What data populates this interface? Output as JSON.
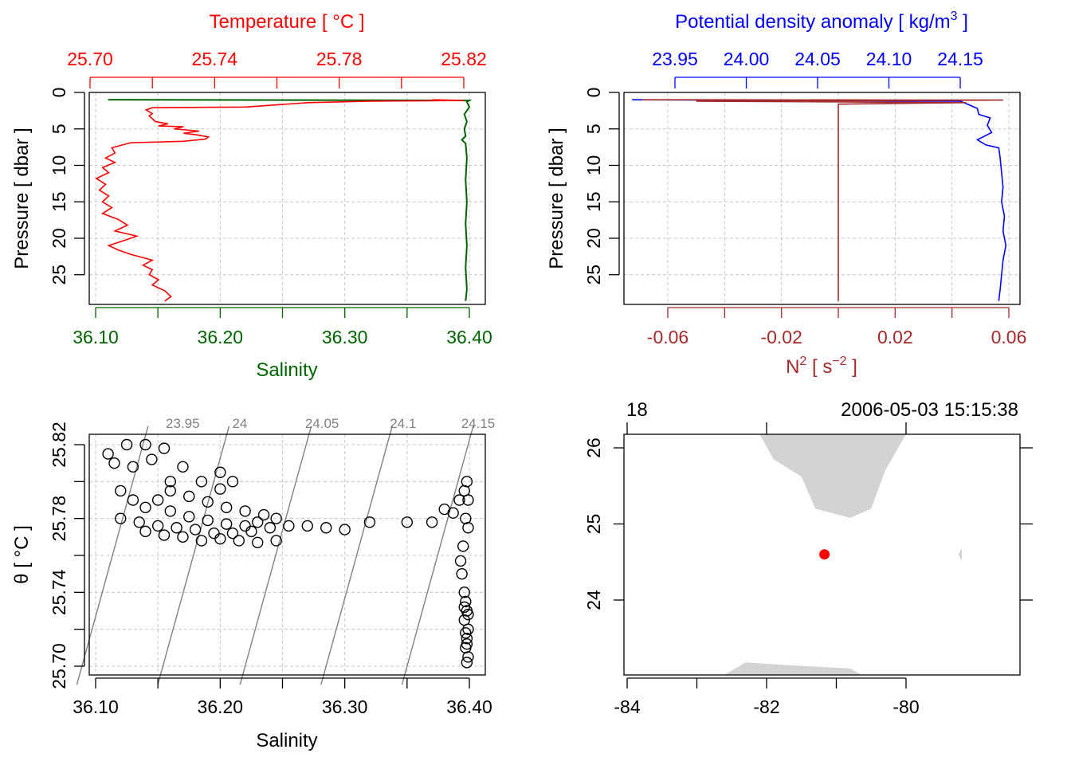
{
  "colors": {
    "temperature": "#ff0000",
    "salinity": "#006400",
    "density": "#0000ff",
    "n2": "#a52a2a",
    "grid": "#c8c8c8",
    "isopycnal": "#808080",
    "land": "#d3d3d3",
    "station": "#ff0000"
  },
  "chart_data": [
    {
      "type": "line",
      "panel": "temperature-salinity-profile",
      "title": "",
      "top_axis": {
        "label": "Temperature [ °C ]",
        "ticks": [
          "25.70",
          "25.74",
          "25.78",
          "25.82"
        ],
        "range": [
          25.7,
          25.82
        ]
      },
      "bottom_axis": {
        "label": "Salinity",
        "ticks": [
          "36.10",
          "36.20",
          "36.30",
          "36.40"
        ],
        "range": [
          36.1,
          36.4
        ]
      },
      "left_axis": {
        "label": "Pressure [ dbar ]",
        "ticks": [
          "0",
          "5",
          "10",
          "15",
          "20",
          "25"
        ],
        "range": [
          0,
          29
        ],
        "reversed": true
      },
      "grid": true,
      "series": [
        {
          "name": "Temperature",
          "color": "#ff0000",
          "points": [
            [
              25.81,
              1.0
            ],
            [
              25.82,
              1.1
            ],
            [
              25.79,
              1.2
            ],
            [
              25.77,
              1.4
            ],
            [
              25.76,
              1.7
            ],
            [
              25.75,
              2.0
            ],
            [
              25.72,
              2.1
            ],
            [
              25.718,
              2.4
            ],
            [
              25.72,
              2.9
            ],
            [
              25.719,
              3.2
            ],
            [
              25.721,
              4.0
            ],
            [
              25.725,
              4.3
            ],
            [
              25.722,
              4.6
            ],
            [
              25.73,
              4.7
            ],
            [
              25.727,
              5.0
            ],
            [
              25.735,
              5.3
            ],
            [
              25.73,
              5.6
            ],
            [
              25.734,
              5.8
            ],
            [
              25.738,
              6.1
            ],
            [
              25.737,
              6.4
            ],
            [
              25.73,
              6.7
            ],
            [
              25.713,
              6.9
            ],
            [
              25.707,
              7.6
            ],
            [
              25.708,
              8.3
            ],
            [
              25.705,
              9.0
            ],
            [
              25.708,
              9.6
            ],
            [
              25.704,
              10.3
            ],
            [
              25.706,
              11.0
            ],
            [
              25.702,
              11.8
            ],
            [
              25.705,
              12.6
            ],
            [
              25.703,
              13.4
            ],
            [
              25.706,
              14.2
            ],
            [
              25.704,
              15.0
            ],
            [
              25.707,
              15.8
            ],
            [
              25.704,
              16.6
            ],
            [
              25.709,
              17.4
            ],
            [
              25.712,
              18.2
            ],
            [
              25.708,
              19.0
            ],
            [
              25.715,
              19.7
            ],
            [
              25.711,
              20.3
            ],
            [
              25.706,
              21.0
            ],
            [
              25.709,
              21.6
            ],
            [
              25.713,
              22.2
            ],
            [
              25.72,
              23.0
            ],
            [
              25.717,
              23.7
            ],
            [
              25.72,
              24.3
            ],
            [
              25.719,
              25.0
            ],
            [
              25.722,
              25.7
            ],
            [
              25.72,
              26.4
            ],
            [
              25.724,
              27.2
            ],
            [
              25.726,
              28.0
            ],
            [
              25.724,
              28.6
            ]
          ]
        },
        {
          "name": "Salinity",
          "color": "#006400",
          "points": [
            [
              36.11,
              1.0
            ],
            [
              36.4,
              1.1
            ],
            [
              36.398,
              1.3
            ],
            [
              36.4,
              2.0
            ],
            [
              36.396,
              3.0
            ],
            [
              36.398,
              4.0
            ],
            [
              36.396,
              5.0
            ],
            [
              36.397,
              6.0
            ],
            [
              36.394,
              6.5
            ],
            [
              36.397,
              7.0
            ],
            [
              36.398,
              9.0
            ],
            [
              36.397,
              12.0
            ],
            [
              36.398,
              15.0
            ],
            [
              36.397,
              18.0
            ],
            [
              36.398,
              21.0
            ],
            [
              36.397,
              24.0
            ],
            [
              36.398,
              27.0
            ],
            [
              36.397,
              28.6
            ]
          ]
        }
      ]
    },
    {
      "type": "line",
      "panel": "density-n2-profile",
      "title": "",
      "top_axis": {
        "label_base": "Potential density anomaly [ kg/m",
        "label_sup": "3",
        "label_end": " ]",
        "ticks": [
          "23.95",
          "24.00",
          "24.05",
          "24.10",
          "24.15"
        ],
        "range": [
          23.95,
          24.15
        ]
      },
      "bottom_axis": {
        "label_base": "N",
        "label_sup": "2",
        "label_mid": " [ s",
        "label_sup2": "−2",
        "label_end": " ]",
        "ticks": [
          "-0.06",
          "-0.02",
          "0.02",
          "0.06"
        ],
        "range": [
          -0.06,
          0.06
        ]
      },
      "left_axis": {
        "label": "Pressure [ dbar ]",
        "ticks": [
          "0",
          "5",
          "10",
          "15",
          "20",
          "25"
        ],
        "range": [
          0,
          29
        ],
        "reversed": true
      },
      "grid": true,
      "series": [
        {
          "name": "Potential density anomaly",
          "color": "#0000ff",
          "points": [
            [
              23.92,
              1.0
            ],
            [
              24.15,
              1.2
            ],
            [
              24.155,
              1.6
            ],
            [
              24.162,
              2.2
            ],
            [
              24.163,
              3.0
            ],
            [
              24.171,
              3.5
            ],
            [
              24.169,
              4.5
            ],
            [
              24.172,
              5.5
            ],
            [
              24.162,
              6.5
            ],
            [
              24.168,
              7.2
            ],
            [
              24.177,
              7.6
            ],
            [
              24.178,
              9.0
            ],
            [
              24.179,
              11.0
            ],
            [
              24.18,
              13.0
            ],
            [
              24.179,
              15.0
            ],
            [
              24.181,
              17.0
            ],
            [
              24.18,
              19.0
            ],
            [
              24.182,
              21.0
            ],
            [
              24.18,
              23.0
            ],
            [
              24.179,
              25.0
            ],
            [
              24.178,
              27.0
            ],
            [
              24.177,
              28.6
            ]
          ]
        },
        {
          "name": "N2",
          "color": "#a52a2a",
          "points": [
            [
              -0.069,
              1.0
            ],
            [
              0.058,
              1.05
            ],
            [
              -0.05,
              1.2
            ],
            [
              0.045,
              1.4
            ],
            [
              0.0,
              1.6
            ],
            [
              0.0,
              2.0
            ],
            [
              0.0,
              28.6
            ]
          ]
        }
      ]
    },
    {
      "type": "scatter",
      "panel": "ts-diagram",
      "title": "",
      "bottom_axis": {
        "label": "Salinity",
        "ticks": [
          "36.10",
          "36.20",
          "36.30",
          "36.40"
        ],
        "range": [
          36.1,
          36.4
        ]
      },
      "left_axis": {
        "label": "θ [ °C ]",
        "ticks": [
          "25.70",
          "25.74",
          "25.78",
          "25.82"
        ],
        "range": [
          25.7,
          25.82
        ]
      },
      "grid": true,
      "isopycnal_labels": [
        "23.95",
        "24",
        "24.05",
        "24.1",
        "24.15"
      ],
      "isopycnals_salinity_at_theta_25_70": [
        36.089,
        36.154,
        36.22,
        36.285,
        36.35
      ],
      "points": [
        [
          36.11,
          25.815
        ],
        [
          36.125,
          25.82
        ],
        [
          36.14,
          25.82
        ],
        [
          36.155,
          25.818
        ],
        [
          36.115,
          25.81
        ],
        [
          36.13,
          25.808
        ],
        [
          36.145,
          25.812
        ],
        [
          36.17,
          25.808
        ],
        [
          36.185,
          25.8
        ],
        [
          36.2,
          25.796
        ],
        [
          36.12,
          25.795
        ],
        [
          36.13,
          25.79
        ],
        [
          36.14,
          25.786
        ],
        [
          36.15,
          25.79
        ],
        [
          36.16,
          25.795
        ],
        [
          36.175,
          25.792
        ],
        [
          36.19,
          25.789
        ],
        [
          36.205,
          25.786
        ],
        [
          36.22,
          25.784
        ],
        [
          36.235,
          25.782
        ],
        [
          36.245,
          25.78
        ],
        [
          36.12,
          25.78
        ],
        [
          36.135,
          25.778
        ],
        [
          36.15,
          25.776
        ],
        [
          36.165,
          25.775
        ],
        [
          36.18,
          25.774
        ],
        [
          36.195,
          25.772
        ],
        [
          36.21,
          25.772
        ],
        [
          36.225,
          25.773
        ],
        [
          36.24,
          25.775
        ],
        [
          36.255,
          25.776
        ],
        [
          36.27,
          25.776
        ],
        [
          36.285,
          25.775
        ],
        [
          36.3,
          25.774
        ],
        [
          36.16,
          25.784
        ],
        [
          36.175,
          25.781
        ],
        [
          36.19,
          25.779
        ],
        [
          36.205,
          25.777
        ],
        [
          36.22,
          25.776
        ],
        [
          36.23,
          25.778
        ],
        [
          36.14,
          25.773
        ],
        [
          36.155,
          25.771
        ],
        [
          36.17,
          25.77
        ],
        [
          36.185,
          25.768
        ],
        [
          36.2,
          25.769
        ],
        [
          36.215,
          25.768
        ],
        [
          36.23,
          25.767
        ],
        [
          36.245,
          25.768
        ],
        [
          36.16,
          25.8
        ],
        [
          36.2,
          25.805
        ],
        [
          36.21,
          25.8
        ],
        [
          36.32,
          25.778
        ],
        [
          36.35,
          25.778
        ],
        [
          36.37,
          25.778
        ],
        [
          36.38,
          25.785
        ],
        [
          36.387,
          25.783
        ],
        [
          36.392,
          25.79
        ],
        [
          36.396,
          25.795
        ],
        [
          36.398,
          25.8
        ],
        [
          36.399,
          25.79
        ],
        [
          36.397,
          25.78
        ],
        [
          36.399,
          25.775
        ],
        [
          36.395,
          25.765
        ],
        [
          36.393,
          25.757
        ],
        [
          36.394,
          25.75
        ],
        [
          36.396,
          25.74
        ],
        [
          36.397,
          25.735
        ],
        [
          36.398,
          25.73
        ],
        [
          36.396,
          25.725
        ],
        [
          36.399,
          25.72
        ],
        [
          36.398,
          25.715
        ],
        [
          36.397,
          25.71
        ],
        [
          36.399,
          25.705
        ],
        [
          36.398,
          25.702
        ],
        [
          36.396,
          25.732
        ],
        [
          36.399,
          25.728
        ],
        [
          36.397,
          25.718
        ],
        [
          36.398,
          25.712
        ]
      ]
    },
    {
      "type": "map",
      "panel": "station-map",
      "title": "",
      "bottom_axis": {
        "ticks": [
          "-84",
          "-82",
          "-80"
        ],
        "range": [
          -84.05,
          -79.2
        ]
      },
      "left_axis": {
        "ticks": [
          "24",
          "25",
          "26"
        ],
        "range": [
          22.95,
          26.18
        ]
      },
      "top_left_label": "18",
      "top_right_label": "2006-05-03 15:15:38",
      "station": {
        "lon": -81.17,
        "lat": 24.6
      },
      "land": [
        [
          [
            -82.1,
            26.18
          ],
          [
            -81.9,
            25.85
          ],
          [
            -81.5,
            25.62
          ],
          [
            -81.3,
            25.2
          ],
          [
            -80.8,
            25.08
          ],
          [
            -80.5,
            25.2
          ],
          [
            -80.3,
            25.7
          ],
          [
            -80.0,
            26.18
          ]
        ],
        [
          [
            -83.1,
            22.95
          ],
          [
            -82.6,
            23.02
          ],
          [
            -82.3,
            23.18
          ],
          [
            -81.8,
            23.15
          ],
          [
            -81.2,
            23.12
          ],
          [
            -80.8,
            23.1
          ],
          [
            -80.5,
            22.95
          ]
        ],
        [
          [
            -79.2,
            24.68
          ],
          [
            -79.25,
            24.6
          ],
          [
            -79.2,
            24.52
          ]
        ]
      ]
    }
  ]
}
